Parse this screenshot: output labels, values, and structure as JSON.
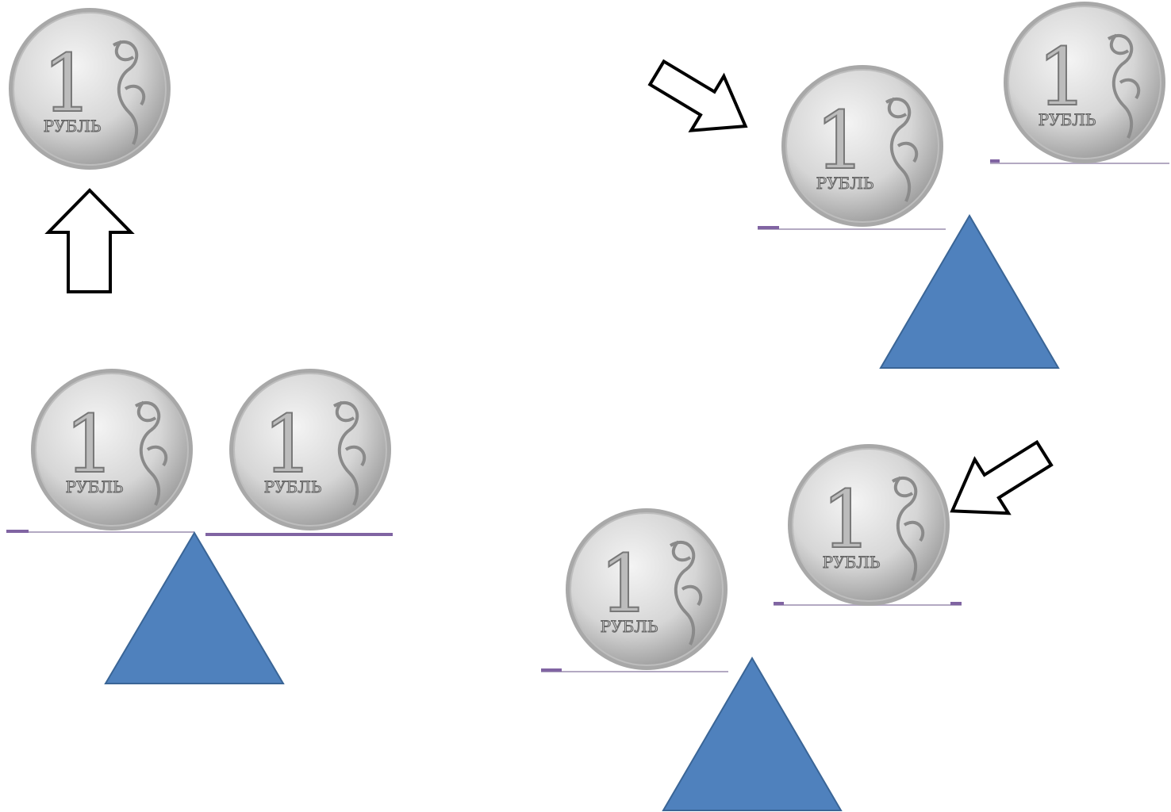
{
  "coins": [
    {
      "denomination": "1",
      "label": "РУБЛЬ"
    },
    {
      "denomination": "1",
      "label": "РУБЛЬ"
    },
    {
      "denomination": "1",
      "label": "РУБЛЬ"
    },
    {
      "denomination": "1",
      "label": "РУБЛЬ"
    },
    {
      "denomination": "1",
      "label": "РУБЛЬ"
    },
    {
      "denomination": "1",
      "label": "РУБЛЬ"
    },
    {
      "denomination": "1",
      "label": "РУБЛЬ"
    }
  ]
}
